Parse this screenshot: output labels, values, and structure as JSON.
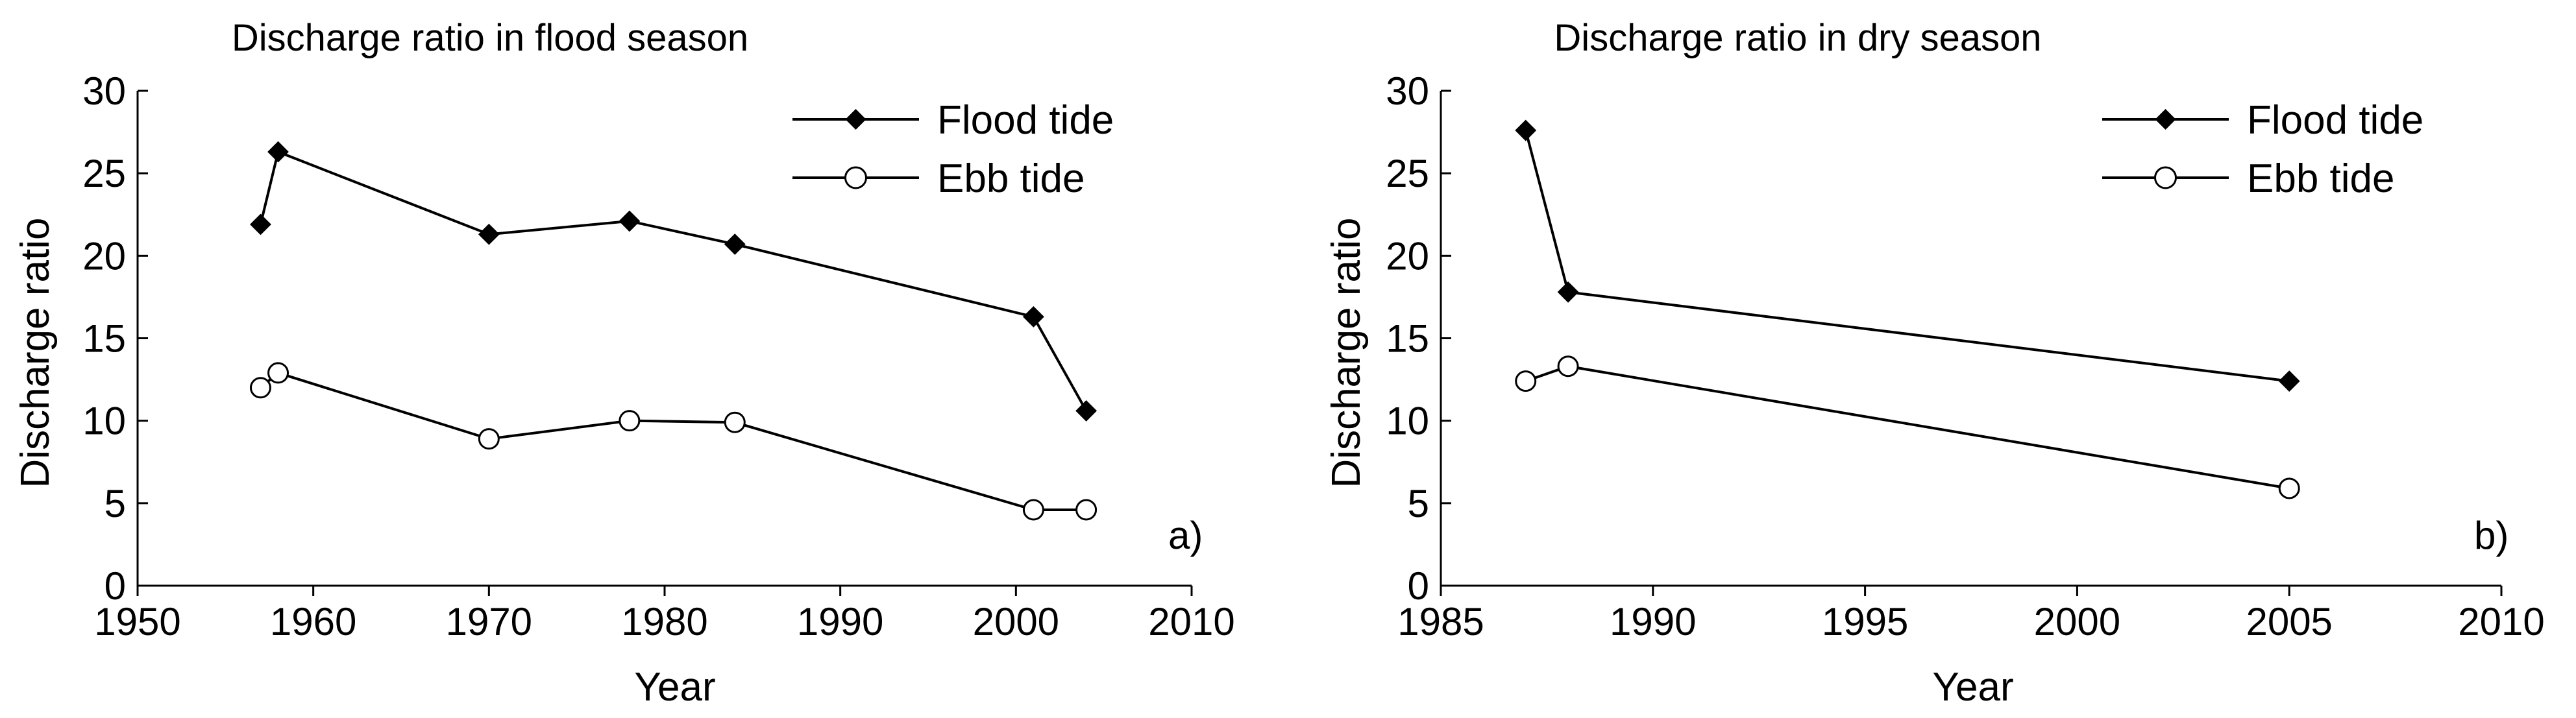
{
  "chart_data": [
    {
      "type": "line",
      "panel": "a",
      "title": "Discharge ratio in flood season",
      "xlabel": "Year",
      "ylabel": "Discharge ratio",
      "xlim": [
        1950,
        2010
      ],
      "ylim": [
        0,
        30
      ],
      "xticks": [
        1950,
        1960,
        1970,
        1980,
        1990,
        2000,
        2010
      ],
      "yticks": [
        0,
        5,
        10,
        15,
        20,
        25,
        30
      ],
      "panel_label": "a)",
      "legend_position": "top-right",
      "series": [
        {
          "name": "Flood tide",
          "marker": "filled-diamond",
          "x": [
            1957,
            1958,
            1970,
            1978,
            1984,
            2001,
            2004
          ],
          "y": [
            21.9,
            26.3,
            21.3,
            22.1,
            20.7,
            16.3,
            10.6
          ]
        },
        {
          "name": "Ebb tide",
          "marker": "open-circle",
          "x": [
            1957,
            1958,
            1970,
            1978,
            1984,
            2001,
            2004
          ],
          "y": [
            12.0,
            12.9,
            8.9,
            10.0,
            9.9,
            4.6,
            4.6
          ]
        }
      ]
    },
    {
      "type": "line",
      "panel": "b",
      "title": "Discharge ratio in dry season",
      "xlabel": "Year",
      "ylabel": "Discharge ratio",
      "xlim": [
        1985,
        2010
      ],
      "ylim": [
        0,
        30
      ],
      "xticks": [
        1985,
        1990,
        1995,
        2000,
        2005,
        2010
      ],
      "yticks": [
        0,
        5,
        10,
        15,
        20,
        25,
        30
      ],
      "panel_label": "b)",
      "legend_position": "top-right",
      "series": [
        {
          "name": "Flood tide",
          "marker": "filled-diamond",
          "x": [
            1987,
            1988,
            2005
          ],
          "y": [
            27.6,
            17.8,
            12.4
          ]
        },
        {
          "name": "Ebb tide",
          "marker": "open-circle",
          "x": [
            1987,
            1988,
            2005
          ],
          "y": [
            12.4,
            13.3,
            5.9
          ]
        }
      ]
    }
  ]
}
